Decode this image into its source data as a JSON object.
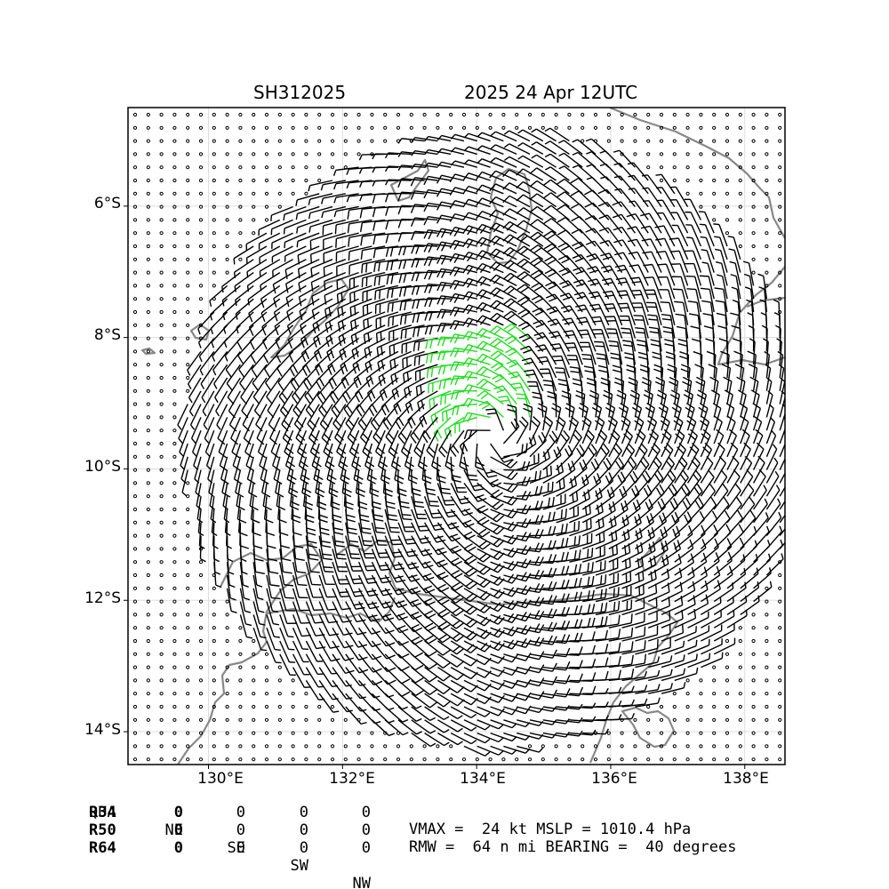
{
  "header": {
    "storm_id": "SH312025",
    "datetime": "2025 24 Apr 12UTC"
  },
  "map": {
    "lon_range": [
      128.8,
      138.6
    ],
    "lat_range": [
      -14.5,
      -4.5
    ],
    "lat_labels": [
      "6°S",
      "8°S",
      "10°S",
      "12°S",
      "14°S"
    ],
    "lon_labels": [
      "130°E",
      "132°E",
      "134°E",
      "136°E",
      "138°E"
    ],
    "center": {
      "lon": 134.25,
      "lat": -9.55
    },
    "rmw_nm": 64,
    "colors": {
      "coast": "#888888",
      "barb": "#000000",
      "strong_barb": "#22dd22",
      "grid": "#dddddd"
    }
  },
  "table": {
    "header": [
      "QUA",
      "NE",
      "SE",
      "SW",
      "NW"
    ],
    "rows": [
      {
        "label": "R34",
        "values": [
          "0",
          "0",
          "0",
          "0"
        ]
      },
      {
        "label": "R50",
        "values": [
          "0",
          "0",
          "0",
          "0"
        ]
      },
      {
        "label": "R64",
        "values": [
          "0",
          "0",
          "0",
          "0"
        ]
      }
    ]
  },
  "summary": {
    "line1": "VMAX =  24 kt MSLP = 1010.4 hPa",
    "line2": "RMW =  64 n mi BEARING =  40 degrees"
  }
}
